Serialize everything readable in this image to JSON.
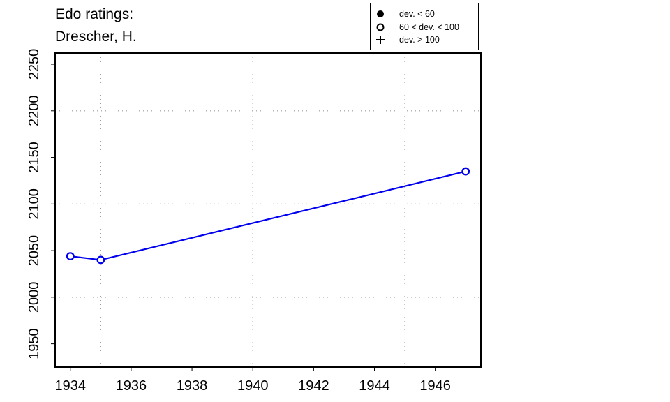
{
  "title": {
    "line1": "Edo ratings:",
    "line2": "Drescher, H."
  },
  "legend": {
    "items": [
      {
        "symbol": "filled-circle",
        "label": "dev. < 60"
      },
      {
        "symbol": "open-circle",
        "label": "60 < dev. < 100"
      },
      {
        "symbol": "plus",
        "label": "dev. > 100"
      }
    ]
  },
  "colors": {
    "series": "#0000ee",
    "axis": "#000000",
    "grid": "#999999"
  },
  "chart_data": {
    "type": "line",
    "title": "Edo ratings: Drescher, H.",
    "xlabel": "",
    "ylabel": "",
    "xlim": [
      1933.5,
      1947.5
    ],
    "ylim": [
      1925,
      2262
    ],
    "x_ticks": [
      1934,
      1936,
      1938,
      1940,
      1942,
      1944,
      1946
    ],
    "y_ticks": [
      1950,
      2000,
      2050,
      2100,
      2150,
      2200,
      2250
    ],
    "x_grid": [
      1935,
      1940,
      1945
    ],
    "y_grid": [
      2000,
      2100,
      2200
    ],
    "grid": true,
    "legend_position": "top-right",
    "series": [
      {
        "marker": "open-circle",
        "x": [
          1934,
          1935,
          1947
        ],
        "y": [
          2044,
          2040,
          2135
        ]
      }
    ]
  }
}
